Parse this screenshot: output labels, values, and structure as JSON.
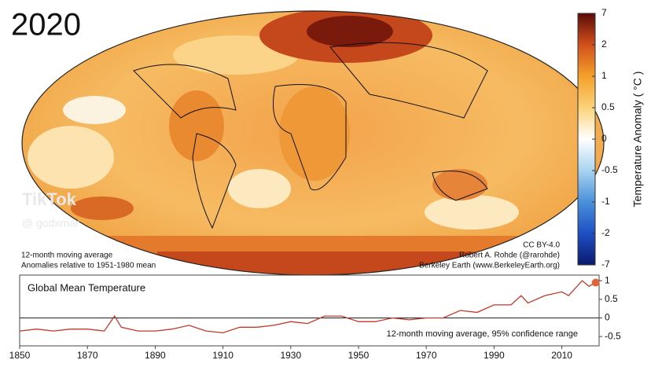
{
  "header": {
    "year": "2020"
  },
  "watermark": {
    "brand": "TikTok",
    "handle": "@ godxmar"
  },
  "map": {
    "notes": [
      "12-month moving average",
      "Anomalies relative to 1951-1980 mean"
    ],
    "credits": [
      "CC BY-4.0",
      "Robert A. Rohde (@rarohde)",
      "Berkeley Earth (www.BerkeleyEarth.org)"
    ]
  },
  "colorbar": {
    "label": "Temperature Anomaly ( °C )",
    "ticks": [
      7,
      2,
      1,
      0.5,
      0,
      -0.5,
      -1,
      -2,
      -7
    ],
    "colors": [
      "#5a0c08",
      "#d2501c",
      "#f4a02a",
      "#fbd27a",
      "#ffffff",
      "#a8d4f0",
      "#4a90d9",
      "#1f4fc4",
      "#0a1a6e"
    ]
  },
  "chart_data": {
    "type": "line",
    "title": "Global Mean Temperature",
    "annotation": "12-month moving average, 95% confidence range",
    "x": [
      1850,
      1855,
      1860,
      1865,
      1870,
      1875,
      1878,
      1880,
      1885,
      1890,
      1895,
      1900,
      1905,
      1910,
      1915,
      1920,
      1925,
      1930,
      1935,
      1940,
      1945,
      1950,
      1955,
      1960,
      1965,
      1970,
      1975,
      1980,
      1985,
      1990,
      1995,
      1998,
      2000,
      2005,
      2010,
      2012,
      2016,
      2018,
      2020
    ],
    "series": [
      {
        "color": "#c0392b",
        "values": [
          -0.35,
          -0.3,
          -0.35,
          -0.3,
          -0.3,
          -0.35,
          0.05,
          -0.25,
          -0.35,
          -0.35,
          -0.3,
          -0.2,
          -0.35,
          -0.4,
          -0.25,
          -0.25,
          -0.2,
          -0.1,
          -0.15,
          0.05,
          0.05,
          -0.1,
          -0.1,
          0.0,
          -0.05,
          0.0,
          0.0,
          0.2,
          0.15,
          0.35,
          0.35,
          0.6,
          0.4,
          0.6,
          0.7,
          0.6,
          1.0,
          0.85,
          0.95
        ]
      }
    ],
    "xlim": [
      1850,
      2021
    ],
    "ylim": [
      -0.75,
      1.15
    ],
    "xticks": [
      1850,
      1870,
      1890,
      1910,
      1930,
      1950,
      1970,
      1990,
      2010
    ],
    "yticks": [
      1,
      0.5,
      0,
      -0.5
    ],
    "zero_line": true
  }
}
